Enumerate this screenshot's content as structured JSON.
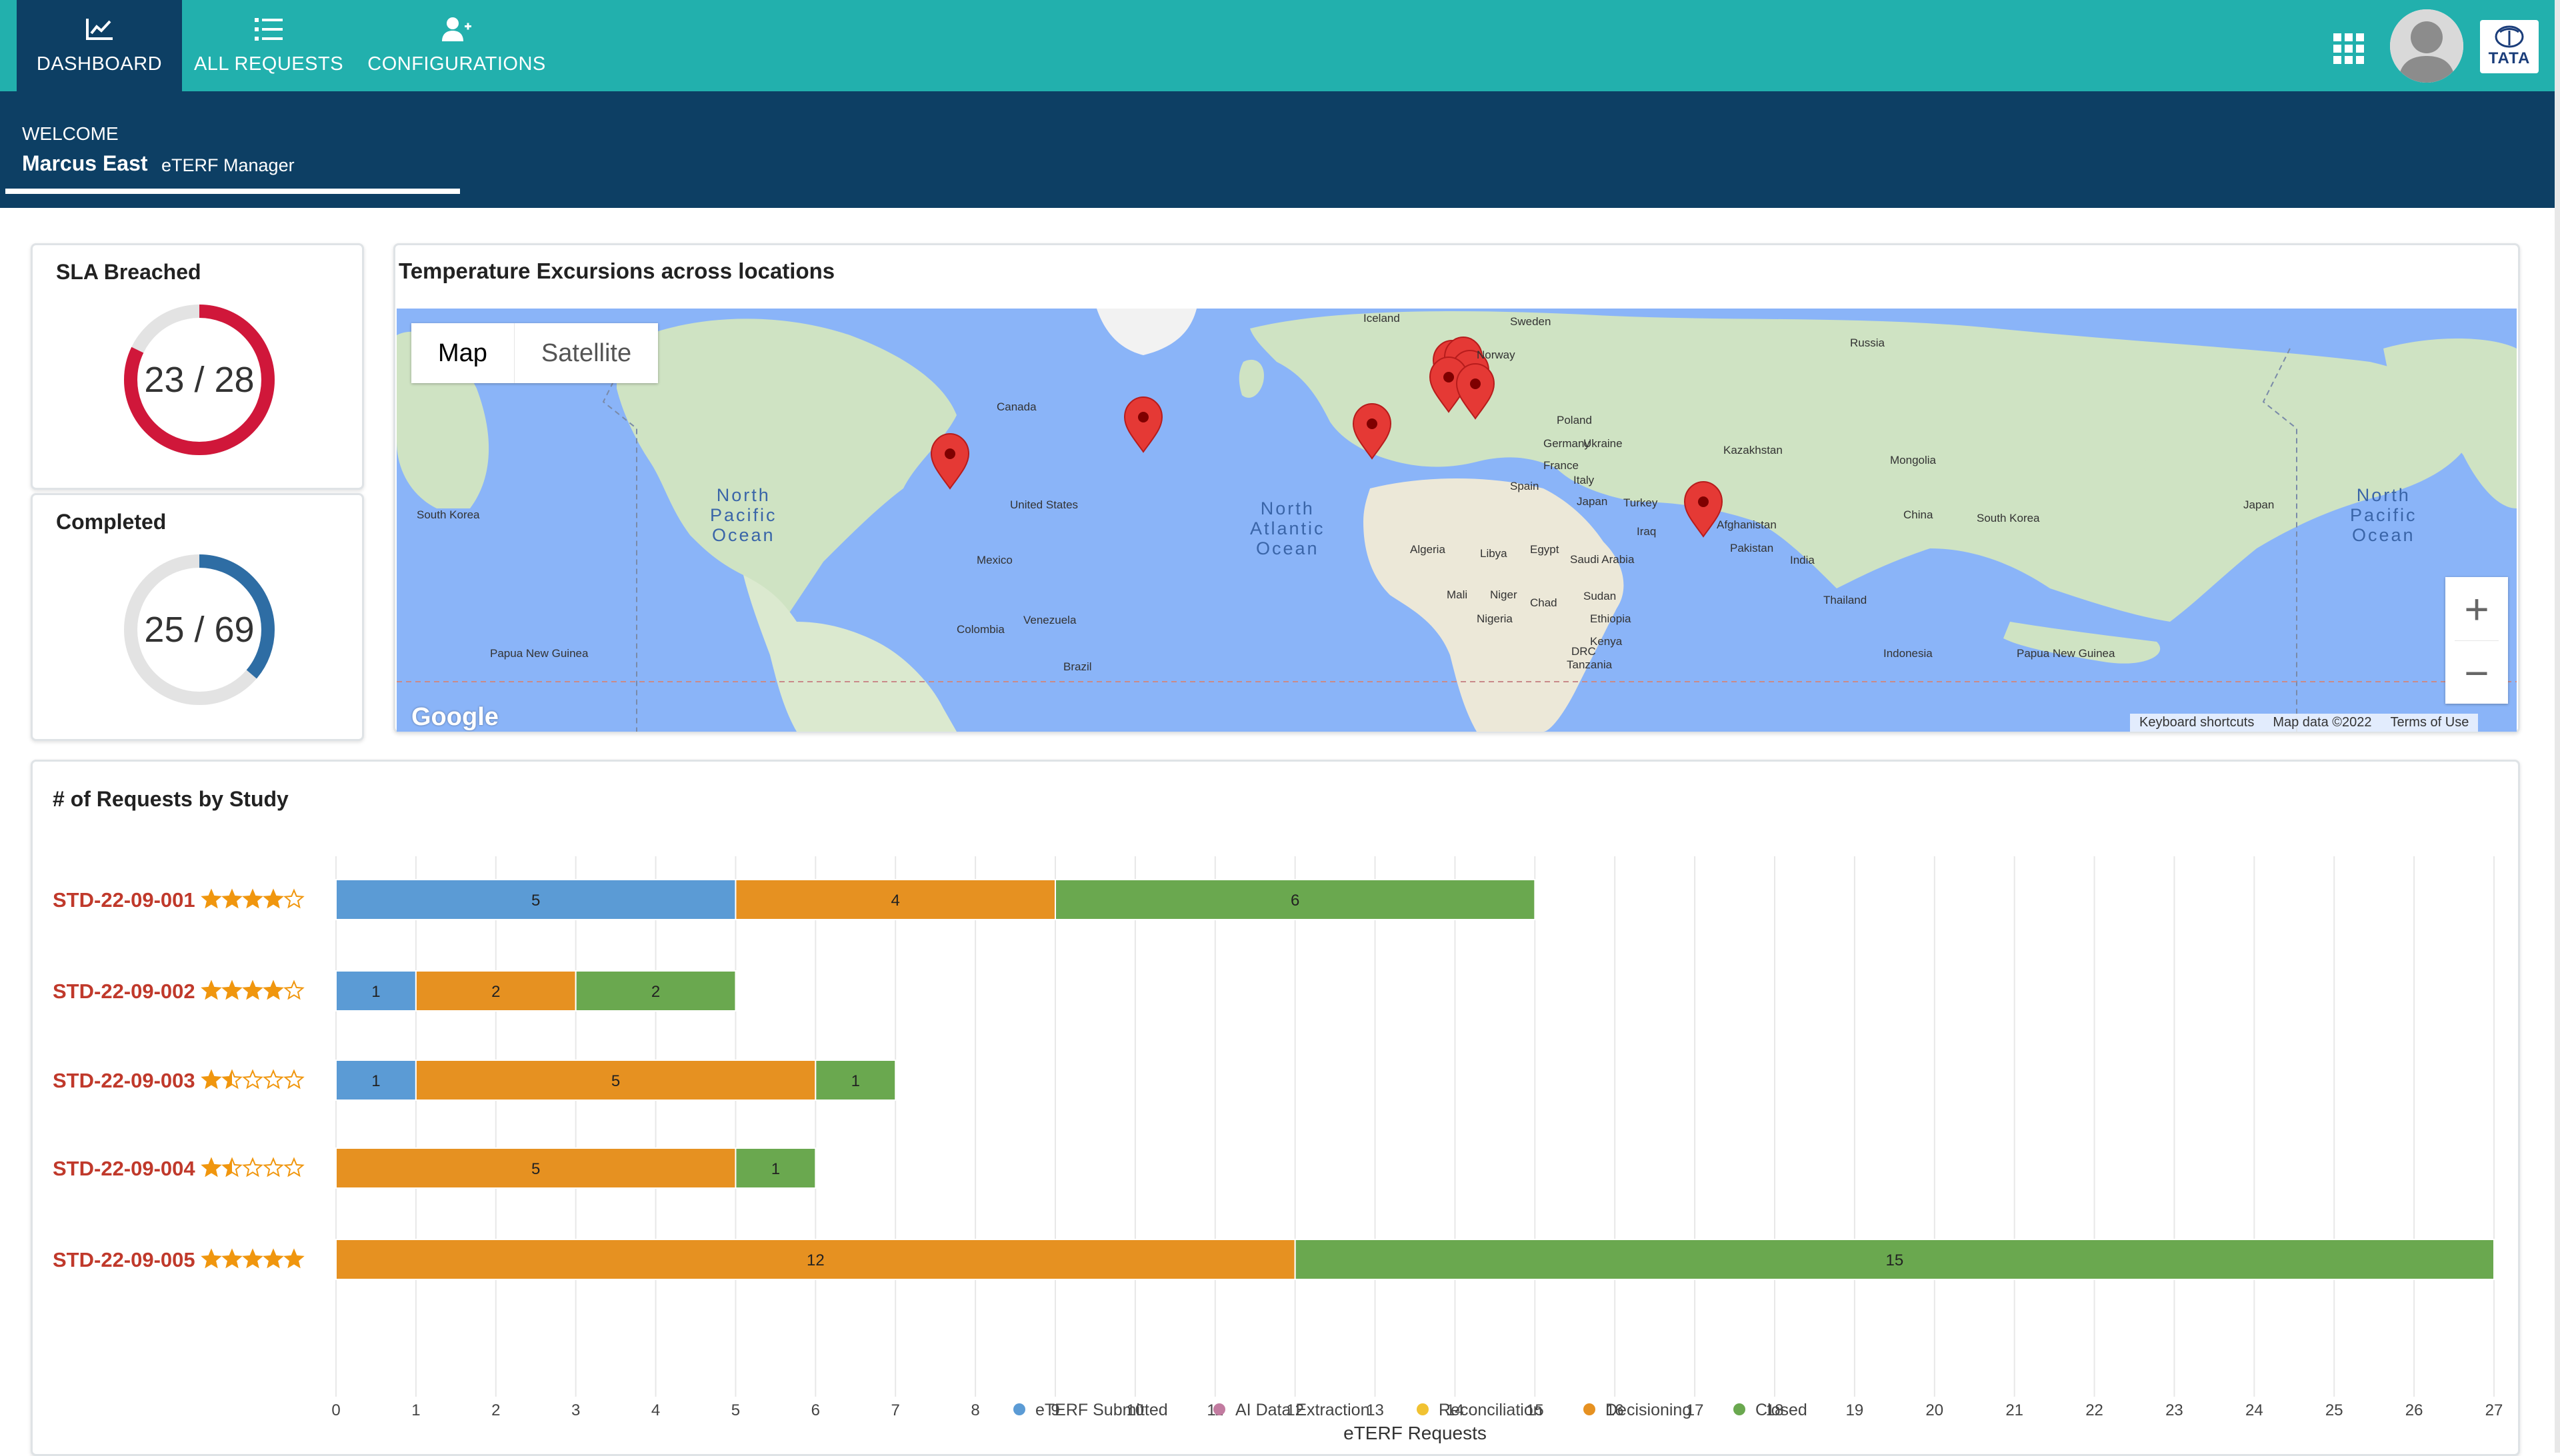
{
  "nav": {
    "items": [
      {
        "label": "DASHBOARD",
        "icon": "line-chart-icon",
        "active": true
      },
      {
        "label": "ALL REQUESTS",
        "icon": "list-icon",
        "active": false
      },
      {
        "label": "CONFIGURATIONS",
        "icon": "user-plus-icon",
        "active": false
      }
    ],
    "brand_text": "TATA"
  },
  "welcome": {
    "label": "WELCOME",
    "name": "Marcus East",
    "role": "eTERF Manager"
  },
  "sla": {
    "title": "SLA Breached",
    "value_text": "23 / 28",
    "value": 23,
    "total": 28,
    "color": "#d0173a"
  },
  "completed": {
    "title": "Completed",
    "value_text": "25 / 69",
    "value": 25,
    "total": 69,
    "color": "#2e6da4"
  },
  "map": {
    "title": "Temperature Excursions across locations",
    "type_map": "Map",
    "type_satellite": "Satellite",
    "zoom_in": "+",
    "zoom_out": "−",
    "footer": [
      "Keyboard shortcuts",
      "Map data ©2022",
      "Terms of Use"
    ],
    "google": "Google",
    "labels": [
      "Iceland",
      "Sweden",
      "Norway",
      "Russia",
      "Canada",
      "Poland",
      "Germany",
      "Ukraine",
      "Kazakhstan",
      "Mongolia",
      "France",
      "Italy",
      "Spain",
      "Turkey",
      "United States",
      "China",
      "Japan",
      "South Korea",
      "Japan",
      "South Korea",
      "Iraq",
      "Afghanistan",
      "Pakistan",
      "India",
      "Algeria",
      "Libya",
      "Egypt",
      "Saudi Arabia",
      "Mexico",
      "Mali",
      "Niger",
      "Chad",
      "Sudan",
      "Thailand",
      "Nigeria",
      "Ethiopia",
      "Venezuela",
      "Colombia",
      "DRC",
      "Kenya",
      "Tanzania",
      "Indonesia",
      "Brazil",
      "Papua New Guinea",
      "Papua New Guinea"
    ],
    "oceans": [
      "North\nPacific\nOcean",
      "North\nAtlantic\nOcean",
      "North\nPacific\nOcean"
    ],
    "marker_color": "#e53935"
  },
  "chart_data": {
    "type": "bar",
    "orientation": "horizontal",
    "stacked": true,
    "title": "# of Requests by Study",
    "xlabel": "eTERF Requests",
    "xlim": [
      0,
      27
    ],
    "xticks": [
      0,
      1,
      2,
      3,
      4,
      5,
      6,
      7,
      8,
      9,
      10,
      11,
      12,
      13,
      14,
      15,
      16,
      17,
      18,
      19,
      20,
      21,
      22,
      23,
      24,
      25,
      26,
      27
    ],
    "categories": [
      "STD-22-09-001",
      "STD-22-09-002",
      "STD-22-09-003",
      "STD-22-09-004",
      "STD-22-09-005"
    ],
    "ratings": [
      4,
      4,
      1.5,
      1.5,
      5
    ],
    "series": [
      {
        "name": "eTERF Submitted",
        "color": "#5b9bd5",
        "values": [
          5,
          1,
          1,
          0,
          0
        ]
      },
      {
        "name": "AI Data Extraction",
        "color": "#c27ba0",
        "values": [
          0,
          0,
          0,
          0,
          0
        ]
      },
      {
        "name": "Reconciliation",
        "color": "#f1c232",
        "values": [
          0,
          0,
          0,
          0,
          0
        ]
      },
      {
        "name": "Decisioning",
        "color": "#e69121",
        "values": [
          4,
          2,
          5,
          5,
          12
        ]
      },
      {
        "name": "Closed",
        "color": "#6aa84f",
        "values": [
          6,
          2,
          1,
          1,
          15
        ]
      }
    ],
    "grid": true,
    "legend": "bottom"
  }
}
